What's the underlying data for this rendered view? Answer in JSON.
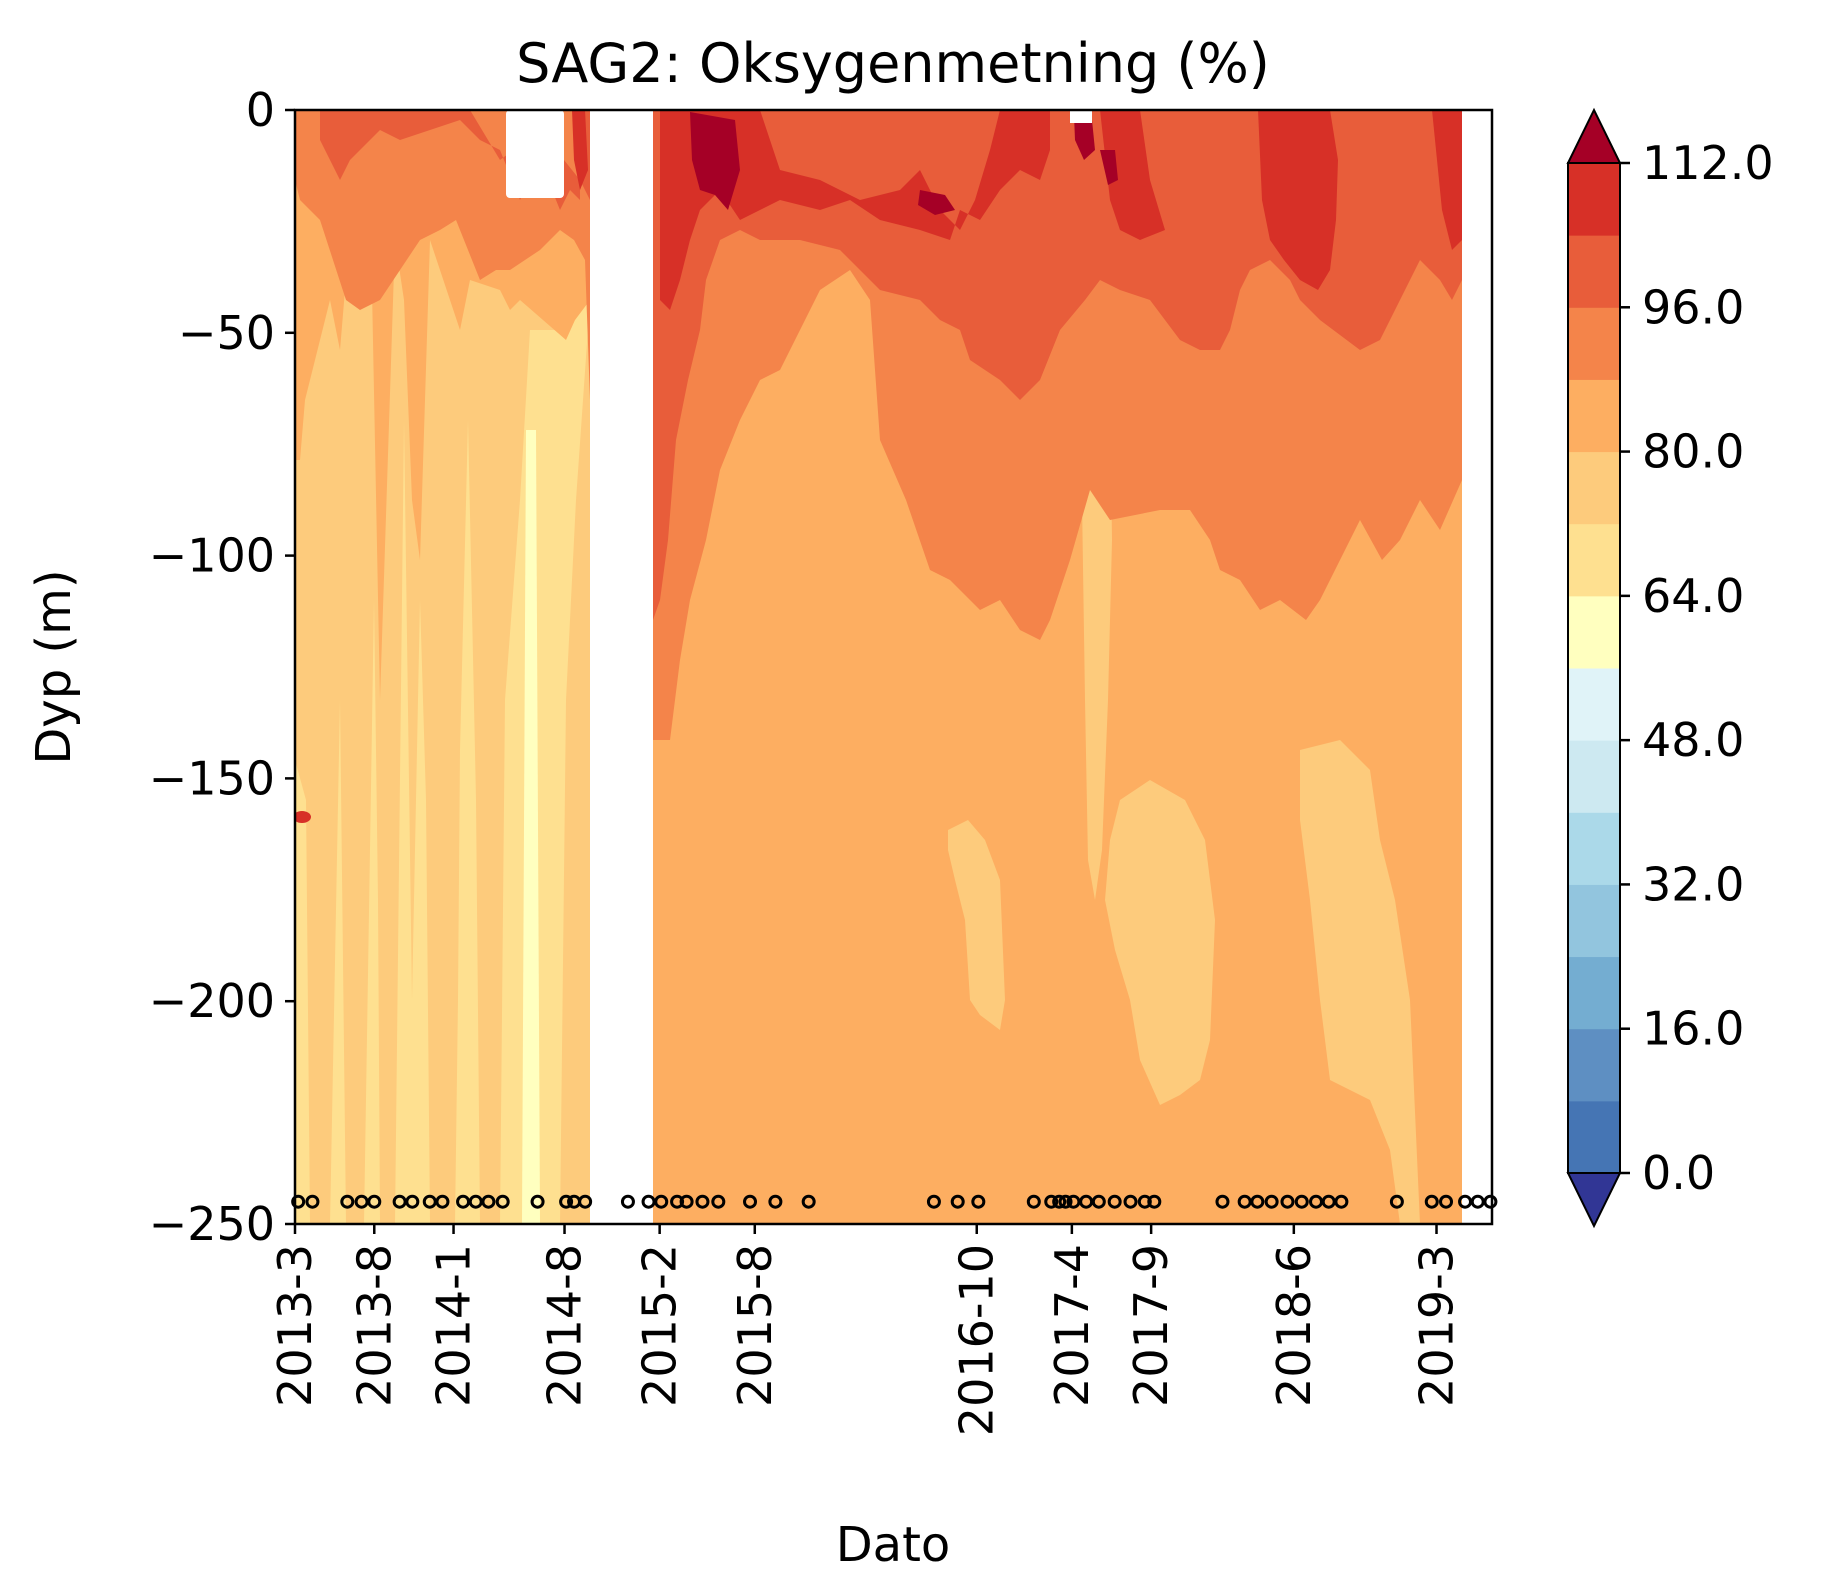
{
  "chart_data": {
    "type": "heatmap",
    "subtype": "filled-contour depth profile over time",
    "title": "SAG2: Oksygenmetning (%)",
    "xlabel": "Dato",
    "ylabel": "Dyp (m)",
    "x_ticks": [
      "2013-3",
      "2013-8",
      "2014-1",
      "2014-8",
      "2015-2",
      "2015-8",
      "2016-10",
      "2017-4",
      "2017-9",
      "2018-6",
      "2019-3"
    ],
    "x_tick_months": [
      0,
      5,
      10,
      17,
      23,
      29,
      43,
      49,
      54,
      63,
      72
    ],
    "x_range_months": [
      0,
      75.5
    ],
    "y_ticks": [
      0,
      -50,
      -100,
      -150,
      -200,
      -250
    ],
    "ylim": [
      -250,
      0
    ],
    "colorbar": {
      "colormap": "RdYlBu_r",
      "levels": [
        0,
        8,
        16,
        24,
        32,
        40,
        48,
        56,
        64,
        72,
        80,
        88,
        96,
        104,
        112
      ],
      "tick_labels": [
        "0.0",
        "16.0",
        "32.0",
        "48.0",
        "64.0",
        "80.0",
        "96.0",
        "112.0"
      ],
      "extend": "both",
      "colors": [
        "#313695",
        "#4575b4",
        "#5e8fc2",
        "#74add1",
        "#92c5de",
        "#abd9e9",
        "#cde9f1",
        "#e0f3f8",
        "#ffffbf",
        "#fee090",
        "#fdcb7c",
        "#fdae61",
        "#f4844a",
        "#e85d3a",
        "#d73027",
        "#a50026"
      ]
    },
    "gaps_months": [
      [
        18.5,
        22.5
      ],
      [
        73.5,
        75.5
      ]
    ],
    "sample_dates_months": [
      0.2,
      1.1,
      3.3,
      4.2,
      5.0,
      6.6,
      7.4,
      8.5,
      9.3,
      10.6,
      11.4,
      12.2,
      13.1,
      15.3,
      17.1,
      17.6,
      18.3,
      21.0,
      22.3,
      23.1,
      24.1,
      24.7,
      25.7,
      26.7,
      28.7,
      30.3,
      32.4,
      40.3,
      41.8,
      43.1,
      46.6,
      47.7,
      48.2,
      48.6,
      49.1,
      49.9,
      50.7,
      51.7,
      52.7,
      53.6,
      54.2,
      58.5,
      59.9,
      60.7,
      61.6,
      62.6,
      63.5,
      64.4,
      65.2,
      66.0,
      69.5,
      71.7,
      72.6,
      73.8,
      74.6,
      75.4
    ],
    "sample_marker_depth": -245,
    "depth_profile_bands": [
      {
        "range_pct": "80-96",
        "depth_m": [
          0,
          -90
        ],
        "period": "2013-3 to 2014-8"
      },
      {
        "range_pct": "64-80",
        "depth_m": [
          -90,
          -250
        ],
        "period": "2013-3 to 2014-8"
      },
      {
        "range_pct": "96-112+",
        "depth_m": [
          0,
          -60
        ],
        "period": "2015-2 to 2019-3"
      },
      {
        "range_pct": "80-96",
        "depth_m": [
          -60,
          -250
        ],
        "period": "2015-2 to 2019-3"
      }
    ]
  }
}
